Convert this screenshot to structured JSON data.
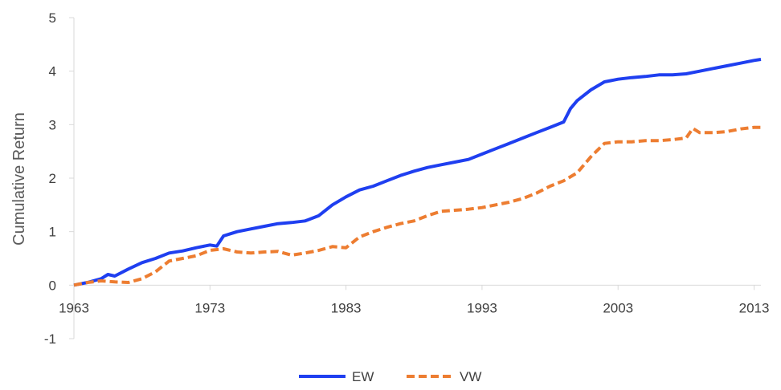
{
  "chart_data": {
    "type": "line",
    "title": "",
    "xlabel": "",
    "ylabel": "Cumulative Return",
    "xlim": [
      1963,
      2013.5
    ],
    "ylim": [
      -1,
      5
    ],
    "x_ticks": [
      1963,
      1973,
      1983,
      1993,
      2003,
      2013
    ],
    "y_ticks": [
      -1,
      0,
      1,
      2,
      3,
      4,
      5
    ],
    "grid": false,
    "legend_position": "bottom-center",
    "series": [
      {
        "name": "EW",
        "color": "#1f3ff0",
        "dash": "solid",
        "x": [
          1963,
          1964,
          1965,
          1965.5,
          1966,
          1967,
          1968,
          1969,
          1970,
          1971,
          1972,
          1973,
          1973.5,
          1974,
          1974.5,
          1975,
          1976,
          1977,
          1978,
          1979,
          1980,
          1981,
          1982,
          1983,
          1984,
          1985,
          1986,
          1987,
          1988,
          1989,
          1990,
          1991,
          1992,
          1993,
          1994,
          1995,
          1996,
          1997,
          1998,
          1999,
          1999.5,
          2000,
          2001,
          2002,
          2003,
          2004,
          2005,
          2006,
          2007,
          2008,
          2009,
          2010,
          2011,
          2012,
          2013,
          2013.5
        ],
        "y": [
          0,
          0.05,
          0.12,
          0.2,
          0.17,
          0.3,
          0.42,
          0.5,
          0.6,
          0.64,
          0.7,
          0.75,
          0.73,
          0.92,
          0.96,
          1.0,
          1.05,
          1.1,
          1.15,
          1.17,
          1.2,
          1.3,
          1.5,
          1.65,
          1.78,
          1.85,
          1.95,
          2.05,
          2.13,
          2.2,
          2.25,
          2.3,
          2.35,
          2.45,
          2.55,
          2.65,
          2.75,
          2.85,
          2.95,
          3.05,
          3.3,
          3.45,
          3.65,
          3.8,
          3.85,
          3.88,
          3.9,
          3.93,
          3.93,
          3.95,
          4.0,
          4.05,
          4.1,
          4.15,
          4.2,
          4.22
        ]
      },
      {
        "name": "VW",
        "color": "#ed7d31",
        "dash": "dashed",
        "x": [
          1963,
          1964,
          1965,
          1966,
          1967,
          1968,
          1969,
          1970,
          1971,
          1972,
          1973,
          1974,
          1975,
          1976,
          1977,
          1978,
          1979,
          1980,
          1981,
          1982,
          1983,
          1984,
          1985,
          1986,
          1987,
          1988,
          1989,
          1990,
          1991,
          1992,
          1993,
          1994,
          1995,
          1996,
          1997,
          1998,
          1999,
          2000,
          2001,
          2002,
          2003,
          2004,
          2005,
          2006,
          2007,
          2008,
          2008.5,
          2009,
          2010,
          2011,
          2012,
          2013,
          2013.5
        ],
        "y": [
          0,
          0.05,
          0.08,
          0.06,
          0.05,
          0.12,
          0.25,
          0.45,
          0.5,
          0.55,
          0.65,
          0.68,
          0.62,
          0.6,
          0.62,
          0.63,
          0.56,
          0.6,
          0.65,
          0.72,
          0.7,
          0.9,
          1.0,
          1.08,
          1.15,
          1.2,
          1.3,
          1.38,
          1.4,
          1.42,
          1.45,
          1.5,
          1.55,
          1.62,
          1.72,
          1.85,
          1.95,
          2.1,
          2.4,
          2.65,
          2.68,
          2.68,
          2.7,
          2.7,
          2.72,
          2.75,
          2.93,
          2.85,
          2.85,
          2.87,
          2.92,
          2.95,
          2.95
        ]
      }
    ]
  }
}
